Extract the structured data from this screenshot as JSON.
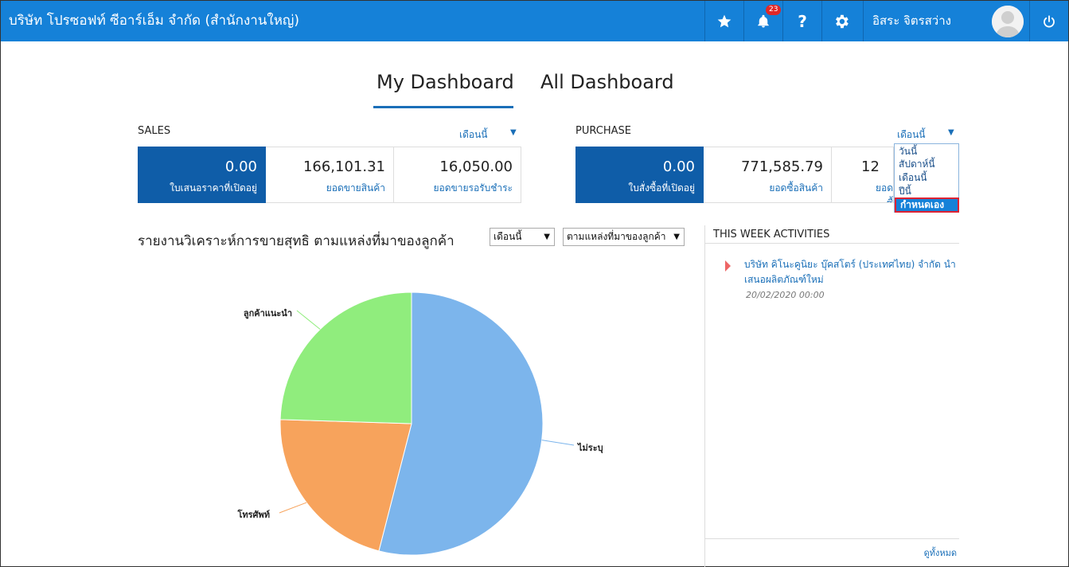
{
  "header": {
    "company": "บริษัท โปรซอฟท์ ซีอาร์เอ็ม จำกัด (สำนักงานใหญ่)",
    "notification_count": "23",
    "username": "อิสระ จิตรสว่าง"
  },
  "tabs": [
    {
      "label": "My Dashboard",
      "active": true
    },
    {
      "label": "All Dashboard",
      "active": false
    }
  ],
  "sales": {
    "title": "SALES",
    "period": "เดือนนี้",
    "cards": [
      {
        "value": "0.00",
        "label": "ใบเสนอราคาที่เปิดอยู่"
      },
      {
        "value": "166,101.31",
        "label": "ยอดขายสินค้า"
      },
      {
        "value": "16,050.00",
        "label": "ยอดขายรอรับชำระ"
      }
    ]
  },
  "purchase": {
    "title": "PURCHASE",
    "period": "เดือนนี้",
    "cards": [
      {
        "value": "0.00",
        "label": "ใบสั่งซื้อที่เปิดอยู่"
      },
      {
        "value": "771,585.79",
        "label": "ยอดซื้อสินค้า"
      },
      {
        "value": "12",
        "label": "ยอดซื้"
      }
    ],
    "dropdown_options": [
      "วันนี้",
      "สัปดาห์นี้",
      "เดือนนี้",
      "ปีนี้",
      "กำหนดเอง"
    ],
    "highlighted_option": "กำหนดเอง"
  },
  "report": {
    "title": "รายงานวิเคราะห์การขายสุทธิ ตามแหล่งที่มาของลูกค้า",
    "period_select": "เดือนนี้",
    "source_select": "ตามแหล่งที่มาของลูกค้า"
  },
  "chart_data": {
    "type": "pie",
    "slices": [
      {
        "label": "ไม่ระบุ",
        "value": 54,
        "color": "#7cb5ec"
      },
      {
        "label": "โทรศัพท์",
        "value": 21.5,
        "color": "#f7a35c"
      },
      {
        "label": "ลูกค้าแนะนำ",
        "value": 24.5,
        "color": "#90ed7d"
      }
    ]
  },
  "activities": {
    "title": "THIS WEEK ACTIVITIES",
    "items": [
      {
        "text": "บริษัท คิโนะคูนิยะ บุ๊คสโตร์ (ประเทศไทย) จำกัด นำเสนอผลิตภัณฑ์ใหม่",
        "date": "20/02/2020 00:00"
      }
    ],
    "view_all": "ดูทั้งหมด"
  }
}
